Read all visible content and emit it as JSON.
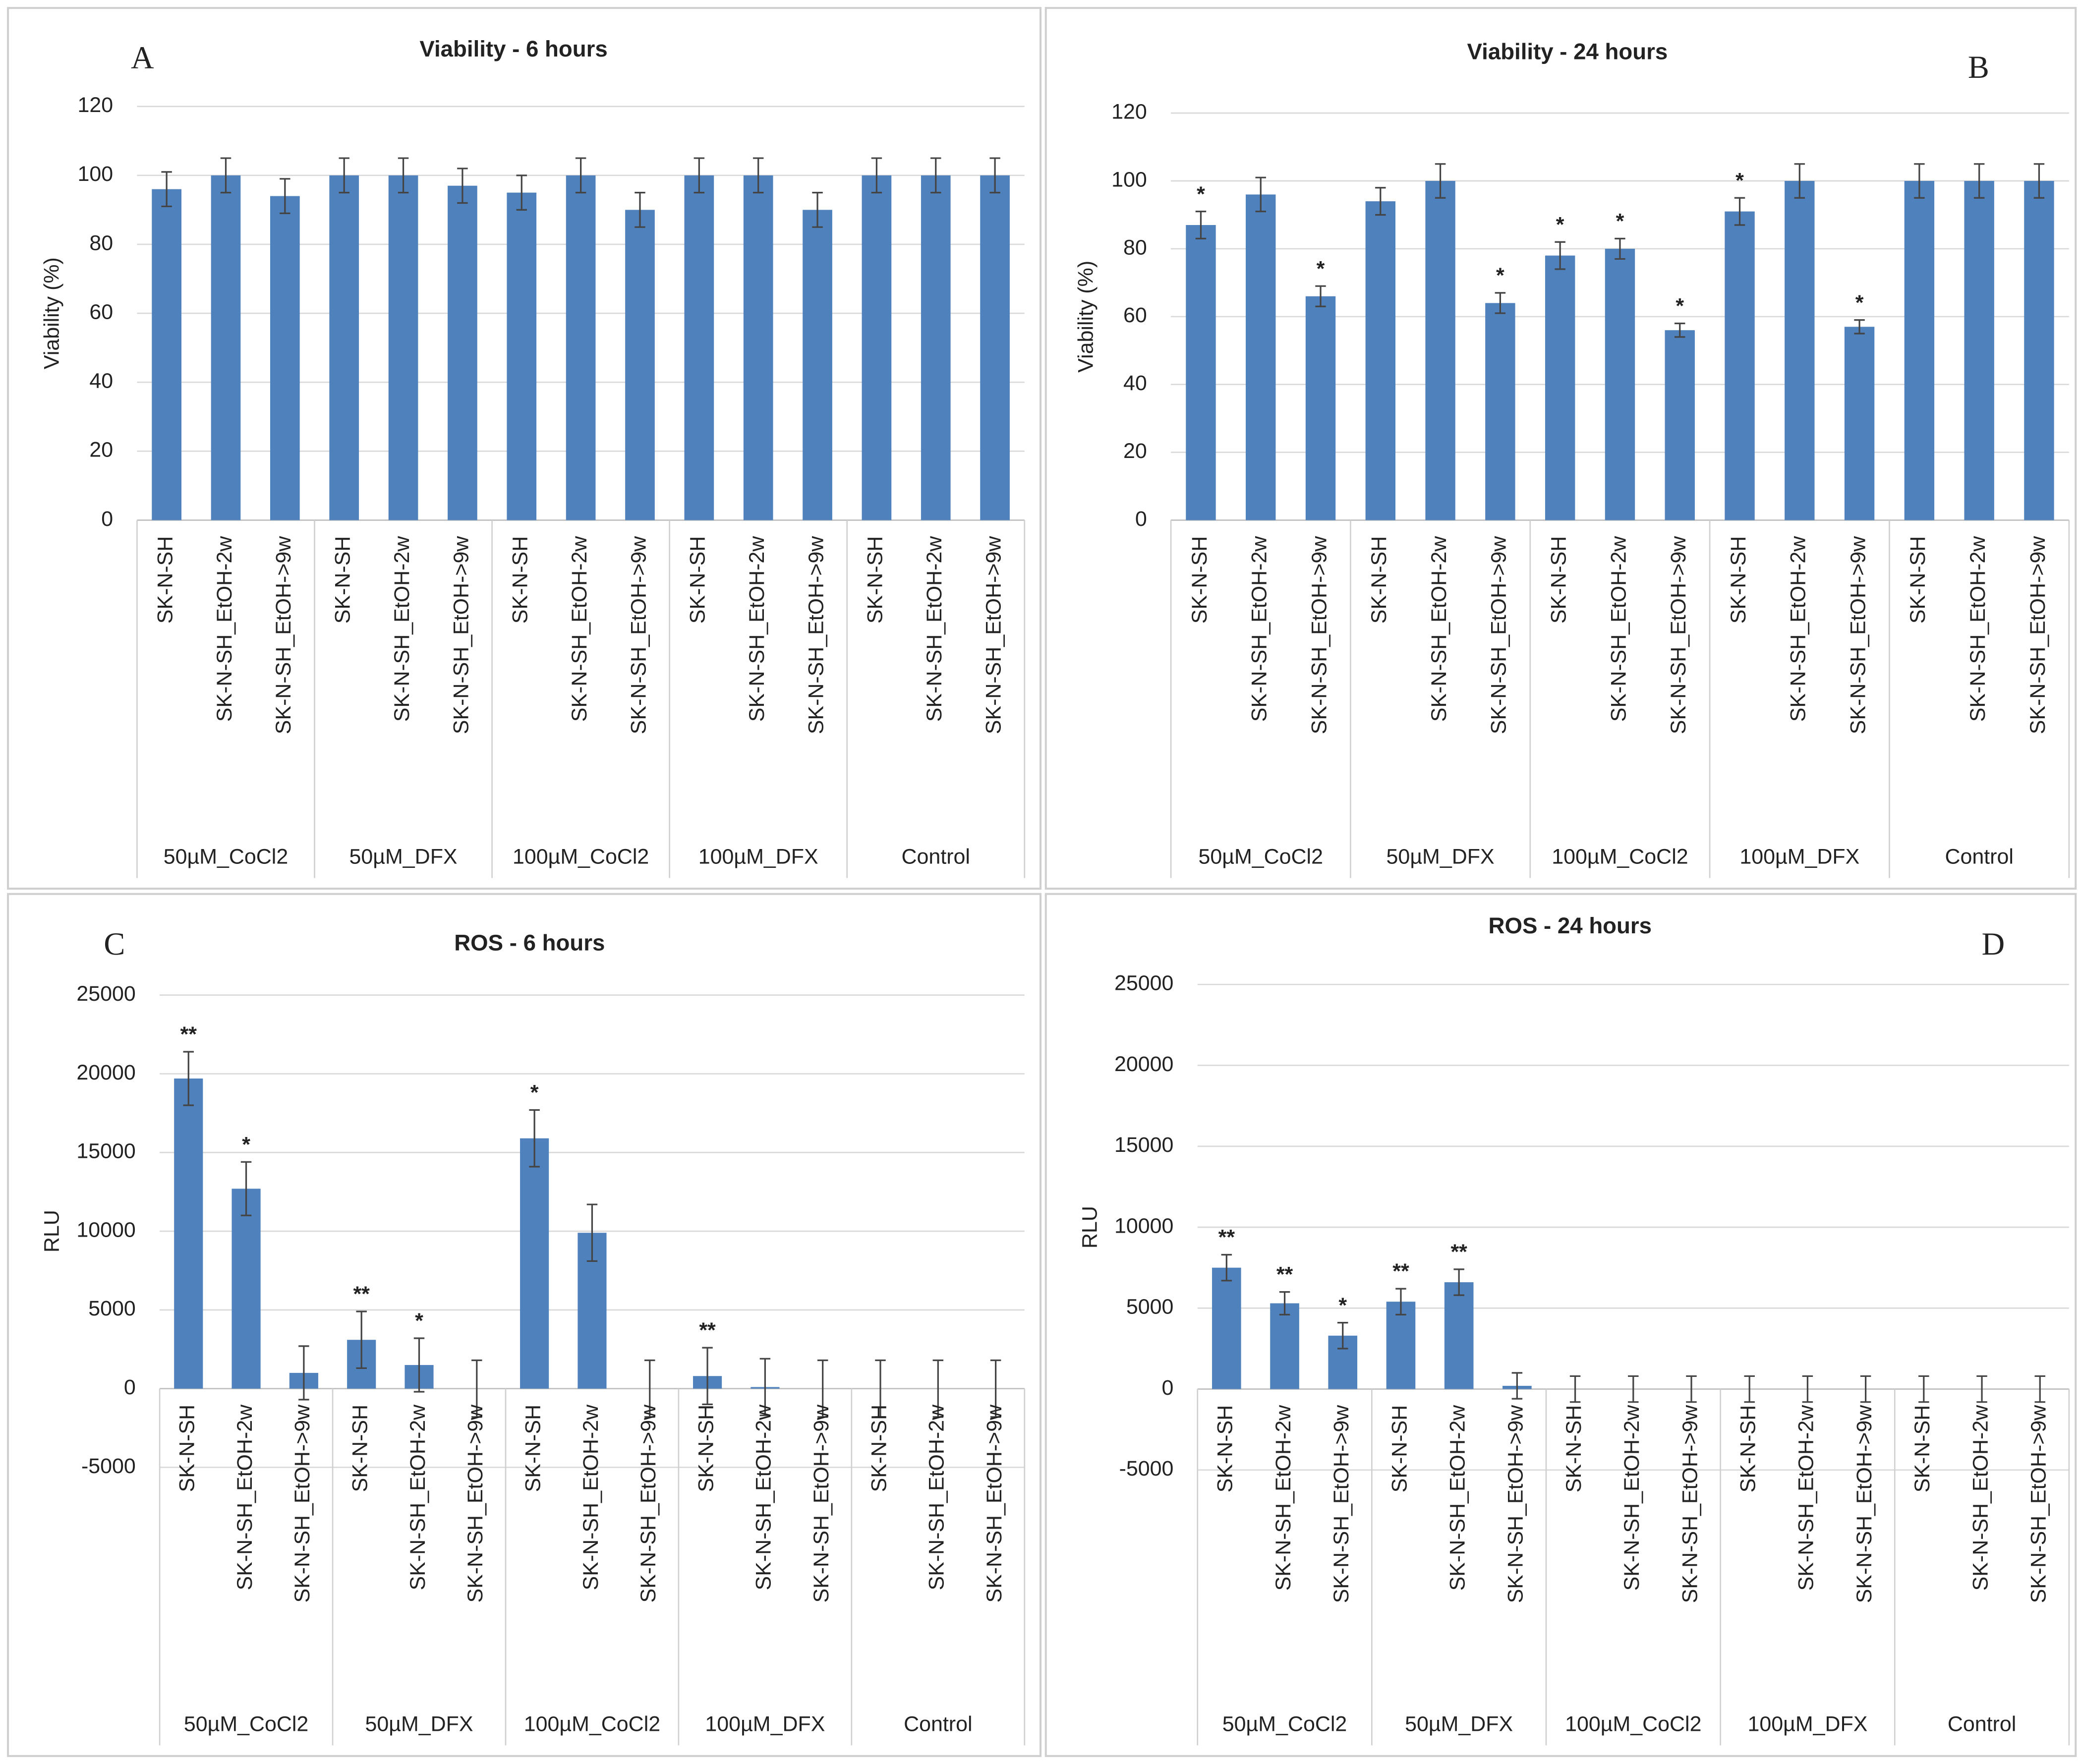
{
  "chart_data": [
    {
      "type": "bar",
      "panel": "A",
      "title": "Viability - 6 hours",
      "y_label": "Viability (%)",
      "color": "#4f81bd",
      "categories": [
        "SK-N-SH",
        "SK-N-SH_EtOH-2w",
        "SK-N-SH_EtOH->9w",
        "SK-N-SH",
        "SK-N-SH_EtOH-2w",
        "SK-N-SH_EtOH->9w",
        "SK-N-SH",
        "SK-N-SH_EtOH-2w",
        "SK-N-SH_EtOH->9w",
        "SK-N-SH",
        "SK-N-SH_EtOH-2w",
        "SK-N-SH_EtOH->9w",
        "SK-N-SH",
        "SK-N-SH_EtOH-2w",
        "SK-N-SH_EtOH->9w"
      ],
      "groups": [
        "50µM_CoCl2",
        "50µM_DFX",
        "100µM_CoCl2",
        "100µM_DFX",
        "Control"
      ],
      "values": [
        96,
        100,
        94,
        100,
        100,
        97,
        95,
        100,
        90,
        100,
        100,
        90,
        100,
        100,
        100
      ],
      "errors": [
        5,
        5,
        5,
        5,
        5,
        5,
        5,
        5,
        5,
        5,
        5,
        5,
        5,
        5,
        5
      ],
      "annotations": [
        null,
        null,
        null,
        null,
        null,
        null,
        null,
        null,
        null,
        null,
        null,
        null,
        null,
        null,
        null
      ],
      "ylim": [
        0,
        120
      ],
      "yticks": [
        0,
        20,
        40,
        60,
        80,
        100,
        120
      ],
      "grid": true
    },
    {
      "type": "bar",
      "panel": "B",
      "title": "Viability - 24 hours",
      "y_label": "Viability (%)",
      "color": "#4f81bd",
      "categories": [
        "SK-N-SH",
        "SK-N-SH_EtOH-2w",
        "SK-N-SH_EtOH->9w",
        "SK-N-SH",
        "SK-N-SH_EtOH-2w",
        "SK-N-SH_EtOH->9w",
        "SK-N-SH",
        "SK-N-SH_EtOH-2w",
        "SK-N-SH_EtOH->9w",
        "SK-N-SH",
        "SK-N-SH_EtOH-2w",
        "SK-N-SH_EtOH->9w",
        "SK-N-SH",
        "SK-N-SH_EtOH-2w",
        "SK-N-SH_EtOH->9w"
      ],
      "groups": [
        "50µM_CoCl2",
        "50µM_DFX",
        "100µM_CoCl2",
        "100µM_DFX",
        "Control"
      ],
      "values": [
        87,
        96,
        66,
        94,
        100,
        64,
        78,
        80,
        56,
        91,
        100,
        57,
        100,
        100,
        100
      ],
      "errors": [
        4,
        5,
        3,
        4,
        5,
        3,
        4,
        3,
        2,
        4,
        5,
        2,
        5,
        5,
        5
      ],
      "annotations": [
        "*",
        null,
        "*",
        null,
        null,
        "*",
        "*",
        "*",
        "*",
        "*",
        null,
        "*",
        null,
        null,
        null
      ],
      "ylim": [
        0,
        120
      ],
      "yticks": [
        0,
        20,
        40,
        60,
        80,
        100,
        120
      ],
      "grid": true
    },
    {
      "type": "bar",
      "panel": "C",
      "title": "ROS - 6 hours",
      "y_label": "RLU",
      "color": "#4f81bd",
      "categories": [
        "SK-N-SH",
        "SK-N-SH_EtOH-2w",
        "SK-N-SH_EtOH->9w",
        "SK-N-SH",
        "SK-N-SH_EtOH-2w",
        "SK-N-SH_EtOH->9w",
        "SK-N-SH",
        "SK-N-SH_EtOH-2w",
        "SK-N-SH_EtOH->9w",
        "SK-N-SH",
        "SK-N-SH_EtOH-2w",
        "SK-N-SH_EtOH->9w",
        "SK-N-SH",
        "SK-N-SH_EtOH-2w",
        "SK-N-SH_EtOH->9w"
      ],
      "groups": [
        "50µM_CoCl2",
        "50µM_DFX",
        "100µM_CoCl2",
        "100µM_DFX",
        "Control"
      ],
      "values": [
        19700,
        12700,
        1000,
        3100,
        1500,
        0,
        15900,
        9900,
        0,
        800,
        100,
        0,
        0,
        0,
        0
      ],
      "errors": [
        1700,
        1700,
        1700,
        1800,
        1700,
        1800,
        1800,
        1800,
        1800,
        1800,
        1800,
        1800,
        1800,
        1800,
        1800
      ],
      "annotations": [
        "**",
        "*",
        null,
        "**",
        "*",
        null,
        "*",
        null,
        null,
        "**",
        null,
        null,
        null,
        null,
        null
      ],
      "ylim": [
        -5000,
        25000
      ],
      "yticks": [
        -5000,
        0,
        5000,
        10000,
        15000,
        20000,
        25000
      ],
      "grid": true
    },
    {
      "type": "bar",
      "panel": "D",
      "title": "ROS - 24 hours",
      "y_label": "RLU",
      "color": "#4f81bd",
      "categories": [
        "SK-N-SH",
        "SK-N-SH_EtOH-2w",
        "SK-N-SH_EtOH->9w",
        "SK-N-SH",
        "SK-N-SH_EtOH-2w",
        "SK-N-SH_EtOH->9w",
        "SK-N-SH",
        "SK-N-SH_EtOH-2w",
        "SK-N-SH_EtOH->9w",
        "SK-N-SH",
        "SK-N-SH_EtOH-2w",
        "SK-N-SH_EtOH->9w",
        "SK-N-SH",
        "SK-N-SH_EtOH-2w",
        "SK-N-SH_EtOH->9w"
      ],
      "groups": [
        "50µM_CoCl2",
        "50µM_DFX",
        "100µM_CoCl2",
        "100µM_DFX",
        "Control"
      ],
      "values": [
        7500,
        5300,
        3300,
        5400,
        6600,
        200,
        0,
        0,
        0,
        0,
        0,
        0,
        0,
        0,
        0
      ],
      "errors": [
        800,
        700,
        800,
        800,
        800,
        800,
        800,
        800,
        800,
        800,
        800,
        800,
        800,
        800,
        800
      ],
      "annotations": [
        "**",
        "**",
        "*",
        "**",
        "**",
        null,
        null,
        null,
        null,
        null,
        null,
        null,
        null,
        null,
        null
      ],
      "ylim": [
        -5000,
        25000
      ],
      "yticks": [
        -5000,
        0,
        5000,
        10000,
        15000,
        20000,
        25000
      ],
      "grid": true
    }
  ]
}
